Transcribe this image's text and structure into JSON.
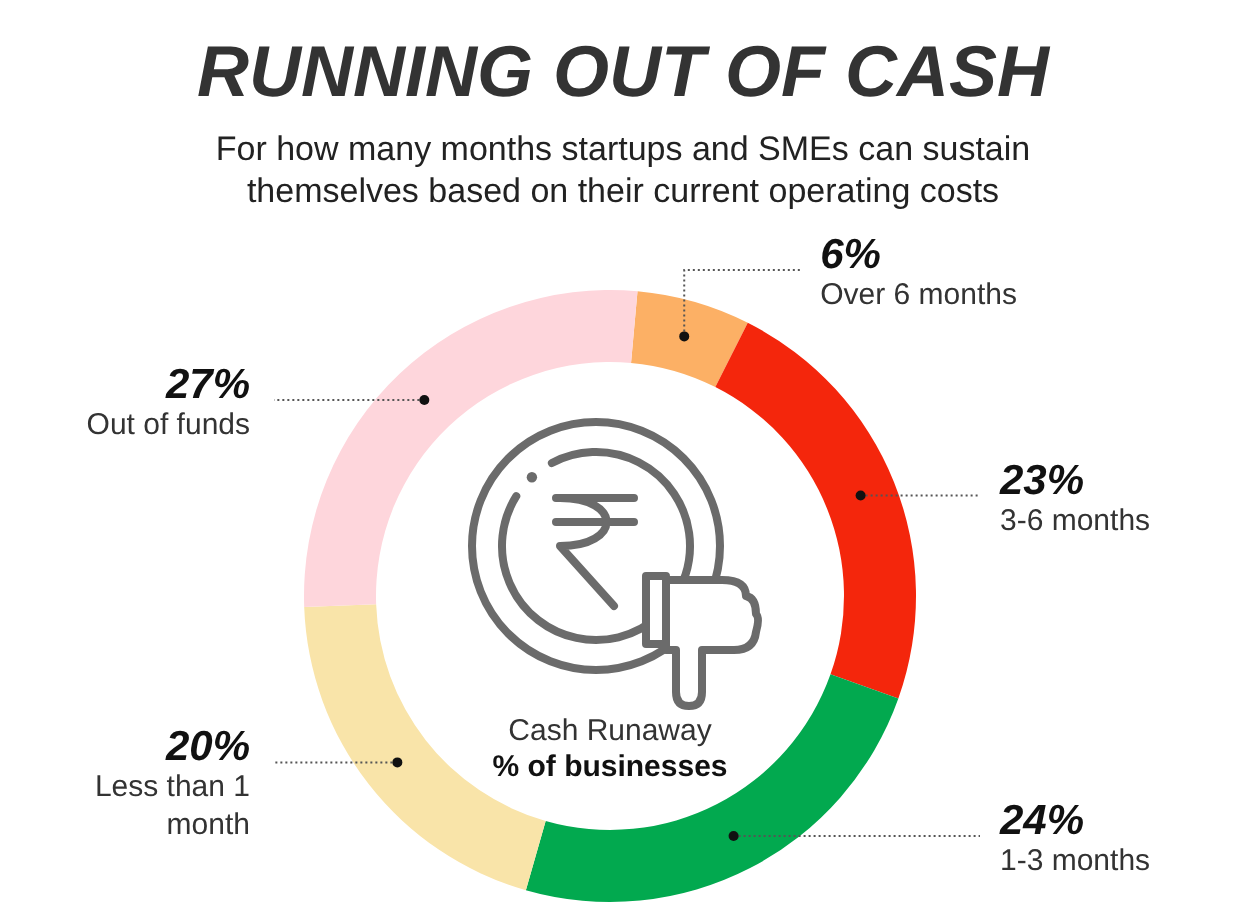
{
  "chart_data": {
    "type": "donut",
    "title": "RUNNING OUT OF CASH",
    "subtitle": "For how many months startups and SMEs can sustain themselves based on their current operating costs",
    "categories": [
      "Over 6 months",
      "3-6 months",
      "1-3 months",
      "Less than 1 month",
      "Out of funds"
    ],
    "values": [
      6,
      23,
      24,
      20,
      27
    ],
    "value_labels": [
      "6%",
      "23%",
      "24%",
      "20%",
      "27%"
    ],
    "colors": [
      "#fcb065",
      "#f4260c",
      "#02a94f",
      "#f9e4a9",
      "#fed6dc"
    ],
    "annotations": [
      "Cash Runaway",
      "% of businesses"
    ]
  }
}
